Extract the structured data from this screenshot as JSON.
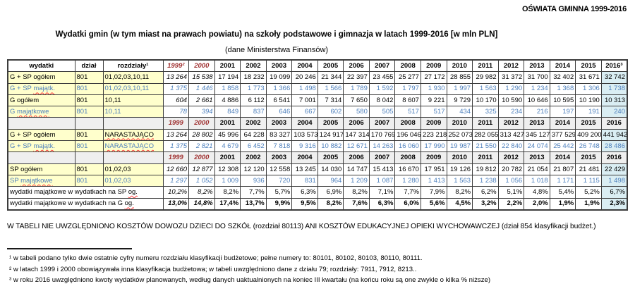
{
  "header": {
    "corner_title": "OŚWIATA GMINNA 1999-2016",
    "title": "Wydatki gmin (w tym miast na prawach powiatu) na szkoły podstawowe i gimnazja w latach 1999-2016 [w mln PLN]",
    "subtitle": "(dane Ministerstwa Finansów)"
  },
  "colors": {
    "yellow": "#FFFFCC",
    "gray": "#EFEFEF",
    "c2016": "#DAEEF3",
    "blue": "#4F81BD",
    "red": "#A03232",
    "sqred": "#FF3B3B"
  },
  "table": {
    "columns": [
      "wydatki",
      "dział",
      "rozdziały¹"
    ],
    "years_first_row": [
      "1999²",
      "2000",
      "2001",
      "2002",
      "2003",
      "2004",
      "2005",
      "2006",
      "2007",
      "2008",
      "2009",
      "2010",
      "2011",
      "2012",
      "2013",
      "2014",
      "2015",
      "2016³"
    ],
    "years_repeat_row": [
      "1999",
      "2000",
      "2001",
      "2002",
      "2003",
      "2004",
      "2005",
      "2006",
      "2007",
      "2008",
      "2009",
      "2010",
      "2011",
      "2012",
      "2013",
      "2014",
      "2015",
      "2016"
    ],
    "rows": [
      {
        "kind": "data",
        "blue": false,
        "label": [
          {
            "text": "G + SP ogółem"
          }
        ],
        "dzial": "801",
        "rozdzialy": [
          {
            "text": "01,02,03,10,11"
          }
        ],
        "values": [
          "13 264",
          "15 538",
          "17 194",
          "18 232",
          "19 099",
          "20 246",
          "21 344",
          "22 397",
          "23 455",
          "25 277",
          "27 172",
          "28 855",
          "29 982",
          "31 372",
          "31 700",
          "32 402",
          "31 671",
          "32 742"
        ]
      },
      {
        "kind": "data",
        "blue": true,
        "label": [
          {
            "text": "G + SP "
          },
          {
            "text": "majątk.",
            "squiggle": true
          }
        ],
        "dzial": "801",
        "rozdzialy": [
          {
            "text": "01,02,03,10,11"
          }
        ],
        "values": [
          "1 375",
          "1 446",
          "1 858",
          "1 773",
          "1 366",
          "1 498",
          "1 566",
          "1 789",
          "1 592",
          "1 797",
          "1 930",
          "1 997",
          "1 563",
          "1 290",
          "1 234",
          "1 368",
          "1 306",
          "1 738"
        ]
      },
      {
        "kind": "data",
        "blue": false,
        "label": [
          {
            "text": "G ogółem"
          }
        ],
        "dzial": "801",
        "rozdzialy": [
          {
            "text": "10,11"
          }
        ],
        "values": [
          "604",
          "2 661",
          "4 886",
          "6 112",
          "6 541",
          "7 001",
          "7 314",
          "7 650",
          "8 042",
          "8 607",
          "9 221",
          "9 729",
          "10 170",
          "10 590",
          "10 646",
          "10 595",
          "10 190",
          "10 313"
        ]
      },
      {
        "kind": "data",
        "blue": true,
        "label": [
          {
            "text": "G "
          },
          {
            "text": "majątkowe",
            "squiggle": true
          }
        ],
        "dzial": "801",
        "rozdzialy": [
          {
            "text": "10,11"
          }
        ],
        "values": [
          "78",
          "394",
          "849",
          "837",
          "646",
          "667",
          "602",
          "580",
          "505",
          "517",
          "517",
          "434",
          "325",
          "234",
          "216",
          "197",
          "191",
          "240"
        ]
      },
      {
        "kind": "year-header"
      },
      {
        "kind": "data",
        "blue": false,
        "label": [
          {
            "text": "G + SP ogółem"
          }
        ],
        "dzial": "801",
        "rozdzialy": [
          {
            "text": "NARASTAJĄCO",
            "squiggle": true
          }
        ],
        "values": [
          "13 264",
          "28 802",
          "45 996",
          "64 228",
          "83 327",
          "103 573",
          "124 917",
          "147 314",
          "170 769",
          "196 046",
          "223 218",
          "252 073",
          "282 055",
          "313 427",
          "345 127",
          "377 529",
          "409 200",
          "441 942"
        ]
      },
      {
        "kind": "data",
        "blue": true,
        "label": [
          {
            "text": "G + SP "
          },
          {
            "text": "majątk.",
            "squiggle": true
          }
        ],
        "dzial": "801",
        "rozdzialy": [
          {
            "text": "NARASTAJĄCO",
            "squiggle": true
          }
        ],
        "values": [
          "1 375",
          "2 821",
          "4 679",
          "6 452",
          "7 818",
          "9 316",
          "10 882",
          "12 671",
          "14 263",
          "16 060",
          "17 990",
          "19 987",
          "21 550",
          "22 840",
          "24 074",
          "25 442",
          "26 748",
          "28 486"
        ]
      },
      {
        "kind": "year-header"
      },
      {
        "kind": "data",
        "blue": false,
        "label": [
          {
            "text": "SP ogółem"
          }
        ],
        "dzial": "801",
        "rozdzialy": [
          {
            "text": "01,02,03"
          }
        ],
        "values": [
          "12 660",
          "12 877",
          "12 308",
          "12 120",
          "12 558",
          "13 245",
          "14 030",
          "14 747",
          "15 413",
          "16 670",
          "17 951",
          "19 126",
          "19 812",
          "20 782",
          "21 054",
          "21 807",
          "21 481",
          "22 429"
        ]
      },
      {
        "kind": "data",
        "blue": true,
        "label": [
          {
            "text": "SP "
          },
          {
            "text": "majątkowe",
            "squiggle": true
          }
        ],
        "dzial": "801",
        "rozdzialy": [
          {
            "text": "01,02,03"
          }
        ],
        "values": [
          "1 297",
          "1 052",
          "1 009",
          "936",
          "720",
          "831",
          "964",
          "1 209",
          "1 087",
          "1 280",
          "1 413",
          "1 563",
          "1 238",
          "1 056",
          "1 018",
          "1 171",
          "1 115",
          "1 498"
        ]
      },
      {
        "kind": "percent",
        "bold": false,
        "label": [
          {
            "text": "wydatki majątkowe w wydatkach na SP "
          },
          {
            "text": "og.",
            "squiggle": true
          }
        ],
        "values": [
          "10,2%",
          "8,2%",
          "8,2%",
          "7,7%",
          "5,7%",
          "6,3%",
          "6,9%",
          "8,2%",
          "7,1%",
          "7,7%",
          "7,9%",
          "8,2%",
          "6,2%",
          "5,1%",
          "4,8%",
          "5,4%",
          "5,2%",
          "6,7%"
        ]
      },
      {
        "kind": "percent",
        "bold": true,
        "label": [
          {
            "text": "wydatki majątkowe w wydatkach na G "
          },
          {
            "text": "og.",
            "squiggle": true
          }
        ],
        "values": [
          "13,0%",
          "14,8%",
          "17,4%",
          "13,7%",
          "9,9%",
          "9,5%",
          "8,2%",
          "7,6%",
          "6,3%",
          "6,0%",
          "5,6%",
          "4,5%",
          "3,2%",
          "2,2%",
          "2,0%",
          "1,9%",
          "1,9%",
          "2,3%"
        ]
      }
    ]
  },
  "note": "W TABELI NIE UWZGLĘDNIONO KOSZTÓW DOWOZU DZIECI DO SZKÓŁ (rozdział 80113)  ANI KOSZTÓW EDUKACYJNEJ OPIEKI WYCHOWAWCZEJ  (dział 854 klasyfikacji budżet.)",
  "footnotes": [
    "¹ w tabeli podano tylko dwie ostatnie cyfry numeru rozdziału klasyfikacji budżetowe; pełne numery to: 80101, 80102, 80103, 80110, 80111.",
    "² w latach 1999 i 2000 obowiązywała  inna klasyfikacja  budżetowa; w tabeli uwzględniono dane z działu 79; rozdziały:  7911, 7912, 8213..",
    "³ w roku 2016 uwzględniono kwoty wydatków planowanych, według danych uaktualnionych na koniec III kwartału  (na końcu roku są one zwykle o kilka % niższe)"
  ]
}
